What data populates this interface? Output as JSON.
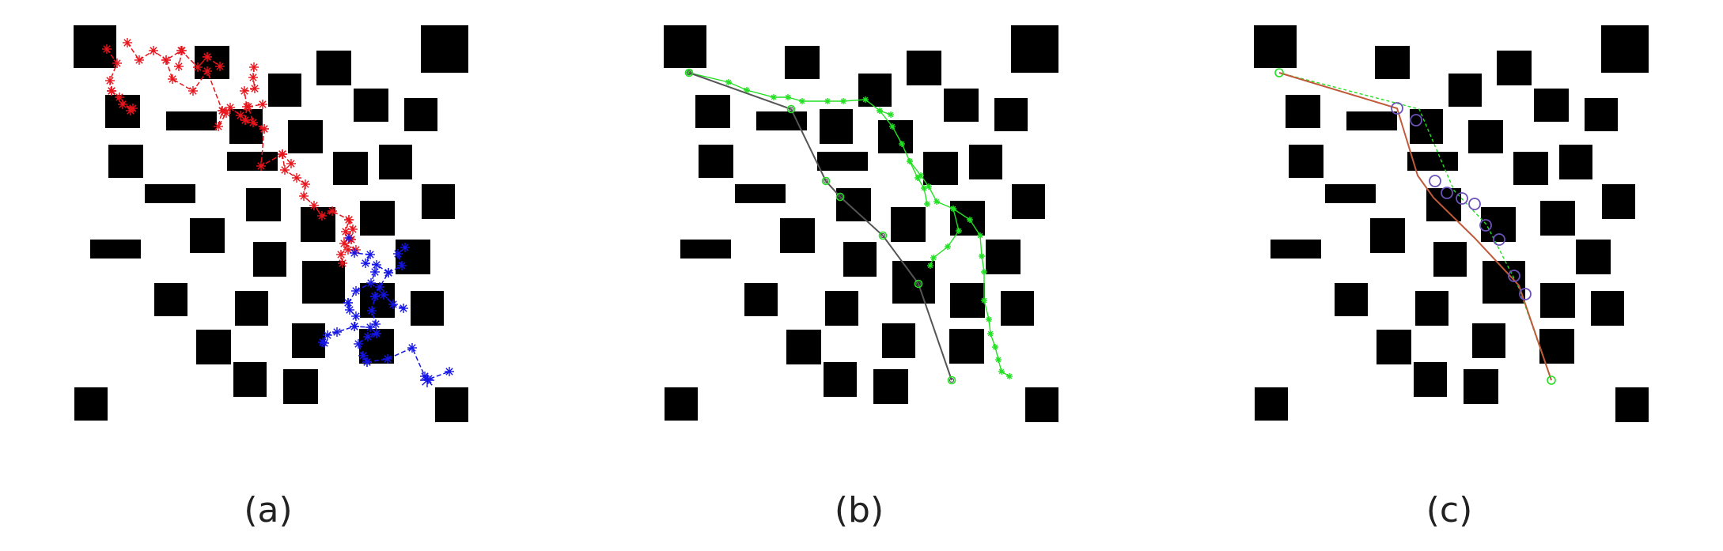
{
  "colors": {
    "obstacle": "#000000",
    "tree_start": "#e8141c",
    "tree_goal": "#1515e6",
    "sample": "#22e022",
    "path_b": "#555555",
    "path_c": "#c05a3a",
    "waypoint_circle": "#6a52b8"
  },
  "icons": {
    "tree_node": "asterisk-marker",
    "waypoint": "circle-marker"
  },
  "panels": [
    {
      "caption": "(a)"
    },
    {
      "caption": "(b)"
    },
    {
      "caption": "(c)"
    }
  ]
}
